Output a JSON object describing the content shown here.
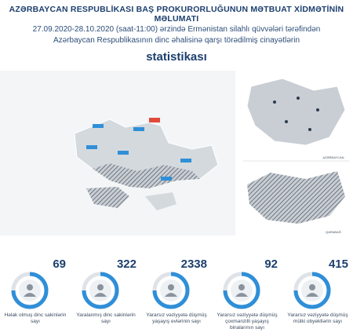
{
  "header": {
    "title": "AZƏRBAYCAN RESPUBLİKASI BAŞ PROKURORLUĞUNUN MƏTBUAT XİDMƏTİNİN MƏLUMATI",
    "subtitle_lines": [
      "27.09.2020-28.10.2020 (saat-11:00) ərzində Ermənistan silahlı qüvvələri tərəfindən",
      "Azərbaycan Respublikasının dinc əhalisinə qarşı törədilmiş cinayətlərin"
    ],
    "emphasis": "statistikası"
  },
  "maps": {
    "top_label": "AZƏRBAYCAN",
    "bottom_label": "QARABAĞ"
  },
  "stats": [
    {
      "number": "69",
      "label": "Həlak olmuş dinc sakinlərin sayı"
    },
    {
      "number": "322",
      "label": "Yaralanmış dinc sakinlərin sayı"
    },
    {
      "number": "2338",
      "label": "Yararsız vəziyyətə düşmüş yaşayış evlərinin sayı"
    },
    {
      "number": "92",
      "label": "Yararsız vəziyyətə düşmüş çoxmənzilli yaşayış binalarının sayı"
    },
    {
      "number": "415",
      "label": "Yararsız vəziyyətə düşmüş mülki obyektlərin sayı"
    }
  ]
}
